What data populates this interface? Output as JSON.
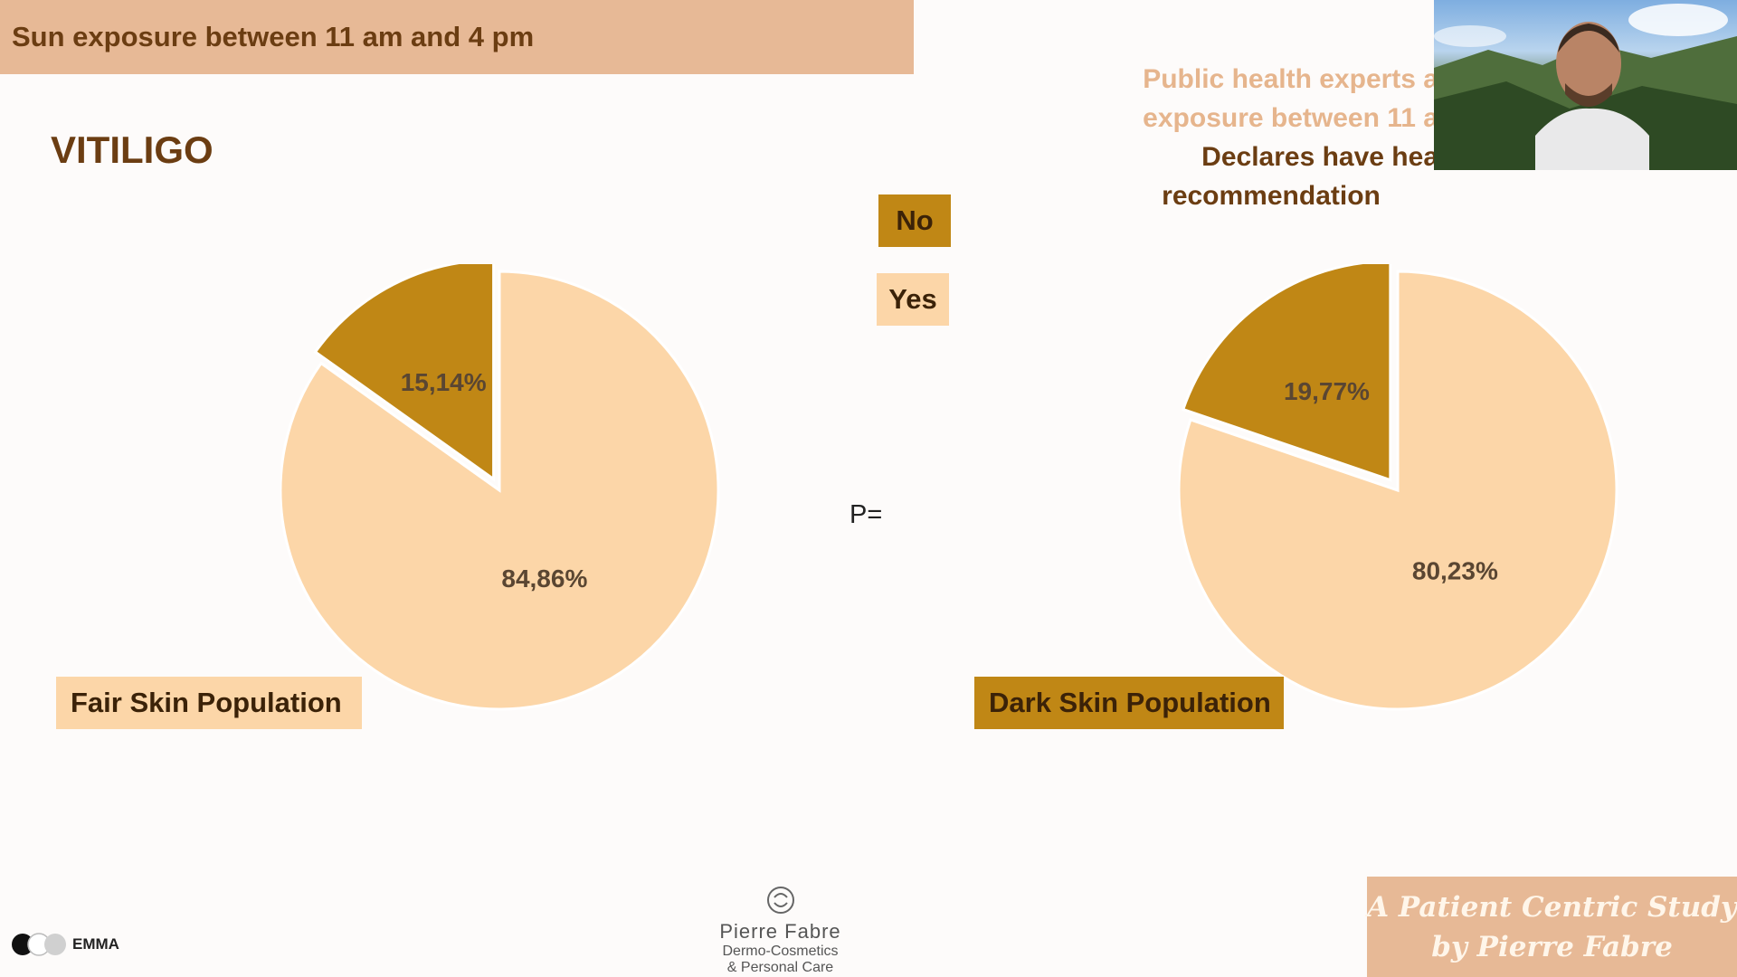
{
  "banner": {
    "text": "Sun exposure between 11 am and 4 pm"
  },
  "section_title": "VITILIGO",
  "legend": [
    {
      "label": "No",
      "color": "#c08715"
    },
    {
      "label": "Yes",
      "color": "#fcd6a8"
    }
  ],
  "p_value_label": "P=",
  "expert_text": {
    "line1": "Public health experts a",
    "line2": "exposure between 11 a",
    "line3": "Declares have  hea",
    "line4": "recommendation"
  },
  "populations": {
    "fair": "Fair Skin Population",
    "dark": "Dark Skin Population"
  },
  "study_box": {
    "line1": "A Patient Centric Study",
    "line2": "by Pierre Fabre"
  },
  "pierre_fabre": {
    "name": "Pierre Fabre",
    "line1": "Dermo-Cosmetics",
    "line2": "& Personal Care"
  },
  "emma_logo_text": "EMMA",
  "colors": {
    "no": "#c08715",
    "yes": "#fcd6a8",
    "title_brown": "#6b3d12",
    "banner": "#e7b996"
  },
  "chart_data": [
    {
      "type": "pie",
      "title": "Fair Skin Population",
      "slices": [
        {
          "name": "No",
          "value": 15.14,
          "label": "15,14%",
          "color": "#c08715",
          "exploded": true
        },
        {
          "name": "Yes",
          "value": 84.86,
          "label": "84,86%",
          "color": "#fcd6a8"
        }
      ]
    },
    {
      "type": "pie",
      "title": "Dark Skin Population",
      "slices": [
        {
          "name": "No",
          "value": 19.77,
          "label": "19,77%",
          "color": "#c08715",
          "exploded": true
        },
        {
          "name": "Yes",
          "value": 80.23,
          "label": "80,23%",
          "color": "#fcd6a8"
        }
      ]
    }
  ]
}
